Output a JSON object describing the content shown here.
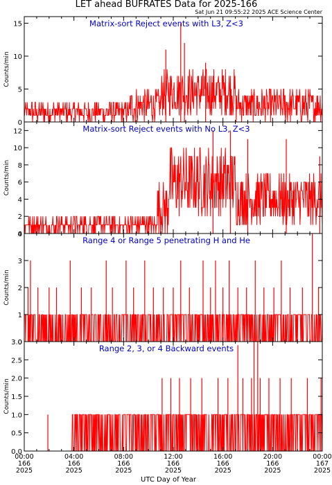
{
  "title": "LET ahead BUFRATES Data for 2025-166",
  "timestamp": "Sat Jun 21 09:55:22 2025 ACE Science Center",
  "xlabel": "UTC Day of Year",
  "colors": {
    "trace": "#ff0000",
    "panel_title": "#0000cc",
    "axis": "#000000"
  },
  "x_ticks": [
    {
      "time": "00:00",
      "day": "166",
      "year": "2025",
      "hours": 0
    },
    {
      "time": "04:00",
      "day": "166",
      "year": "2025",
      "hours": 4
    },
    {
      "time": "08:00",
      "day": "166",
      "year": "2025",
      "hours": 8
    },
    {
      "time": "12:00",
      "day": "166",
      "year": "2025",
      "hours": 12
    },
    {
      "time": "16:00",
      "day": "166",
      "year": "2025",
      "hours": 16
    },
    {
      "time": "20:00",
      "day": "166",
      "year": "2025",
      "hours": 20
    },
    {
      "time": "00:00",
      "day": "167",
      "year": "2025",
      "hours": 24
    }
  ],
  "chart_data": [
    {
      "type": "line",
      "title": "Matrix-sort Reject events with L3, Z<3",
      "ylabel": "Counts/min",
      "xlim": [
        0,
        24
      ],
      "ylim": [
        0,
        16
      ],
      "yticks": [
        "0",
        "5",
        "10",
        "15"
      ],
      "ytick_values": [
        0,
        5,
        10,
        15
      ],
      "segments": [
        {
          "x_start": 0,
          "x_end": 8.5,
          "low": 0,
          "high": 3
        },
        {
          "x_start": 8.5,
          "x_end": 11,
          "low": 0,
          "high": 5
        },
        {
          "x_start": 11,
          "x_end": 17,
          "low": 1,
          "high": 8
        },
        {
          "x_start": 17,
          "x_end": 24,
          "low": 0,
          "high": 5
        }
      ],
      "spikes": [
        {
          "x": 11.4,
          "y": 11
        },
        {
          "x": 12.6,
          "y": 15
        },
        {
          "x": 12.9,
          "y": 12
        },
        {
          "x": 14.6,
          "y": 9
        }
      ]
    },
    {
      "type": "line",
      "title": "Matrix-sort Reject events with No L3, Z<3",
      "ylabel": "Counts/min",
      "xlim": [
        0,
        24
      ],
      "ylim": [
        0,
        13
      ],
      "yticks": [
        "0",
        "2",
        "4",
        "6",
        "8",
        "10",
        "12"
      ],
      "ytick_values": [
        0,
        2,
        4,
        6,
        8,
        10,
        12
      ],
      "segments": [
        {
          "x_start": 0,
          "x_end": 10.6,
          "low": 0,
          "high": 2
        },
        {
          "x_start": 10.6,
          "x_end": 11.6,
          "low": 0,
          "high": 6
        },
        {
          "x_start": 11.6,
          "x_end": 17,
          "low": 2,
          "high": 10
        },
        {
          "x_start": 17,
          "x_end": 24,
          "low": 1,
          "high": 7
        }
      ],
      "spikes": [
        {
          "x": 15.2,
          "y": 12
        },
        {
          "x": 16.6,
          "y": 12
        },
        {
          "x": 18.0,
          "y": 11
        },
        {
          "x": 21.1,
          "y": 11
        },
        {
          "x": 23.8,
          "y": 9
        }
      ]
    },
    {
      "type": "line",
      "title": "Range 4 or Range 5 penetrating H and He",
      "ylabel": "Counts/min",
      "xlim": [
        0,
        24
      ],
      "ylim": [
        0,
        4
      ],
      "yticks": [
        "0",
        "1",
        "2",
        "3",
        "4"
      ],
      "ytick_values": [
        0,
        1,
        2,
        3,
        4
      ],
      "segments": [
        {
          "x_start": 0,
          "x_end": 24,
          "low": 0,
          "high": 1
        }
      ],
      "spikes": [
        {
          "x": 0.5,
          "y": 3
        },
        {
          "x": 3.7,
          "y": 3
        },
        {
          "x": 6.6,
          "y": 3
        },
        {
          "x": 8.2,
          "y": 3
        },
        {
          "x": 9.7,
          "y": 3
        },
        {
          "x": 12.6,
          "y": 3
        },
        {
          "x": 14.4,
          "y": 3
        },
        {
          "x": 15.4,
          "y": 3
        },
        {
          "x": 16.5,
          "y": 3
        },
        {
          "x": 18.6,
          "y": 3
        },
        {
          "x": 20.7,
          "y": 3
        },
        {
          "x": 23.2,
          "y": 4
        }
      ],
      "mid_spikes": [
        {
          "x": 0.3,
          "y": 2
        },
        {
          "x": 1.1,
          "y": 2
        },
        {
          "x": 2.0,
          "y": 2
        },
        {
          "x": 2.6,
          "y": 2
        },
        {
          "x": 4.6,
          "y": 2
        },
        {
          "x": 5.4,
          "y": 2
        },
        {
          "x": 7.1,
          "y": 2
        },
        {
          "x": 8.8,
          "y": 2
        },
        {
          "x": 10.4,
          "y": 2
        },
        {
          "x": 11.2,
          "y": 2
        },
        {
          "x": 12.0,
          "y": 2
        },
        {
          "x": 13.3,
          "y": 2
        },
        {
          "x": 15.0,
          "y": 2
        },
        {
          "x": 16.0,
          "y": 2
        },
        {
          "x": 17.2,
          "y": 2
        },
        {
          "x": 17.9,
          "y": 2
        },
        {
          "x": 19.3,
          "y": 2
        },
        {
          "x": 20.1,
          "y": 2
        },
        {
          "x": 21.4,
          "y": 2
        },
        {
          "x": 22.4,
          "y": 2
        },
        {
          "x": 23.7,
          "y": 2
        }
      ]
    },
    {
      "type": "line",
      "title": "Range 2, 3, or 4 Backward events",
      "ylabel": "Counts/min",
      "xlim": [
        0,
        24
      ],
      "ylim": [
        0,
        3
      ],
      "yticks": [
        "0.0",
        "0.5",
        "1.0",
        "1.5",
        "2.0",
        "2.5",
        "3.0"
      ],
      "ytick_values": [
        0,
        0.5,
        1,
        1.5,
        2,
        2.5,
        3
      ],
      "segments": [
        {
          "x_start": 0,
          "x_end": 3.8,
          "low": 0,
          "high": 0
        },
        {
          "x_start": 3.8,
          "x_end": 10.5,
          "low": 0,
          "high": 1
        },
        {
          "x_start": 10.5,
          "x_end": 24,
          "low": 0,
          "high": 1
        }
      ],
      "spikes": [
        {
          "x": 1.9,
          "y": 1
        },
        {
          "x": 17.2,
          "y": 2.9
        },
        {
          "x": 18.5,
          "y": 3
        },
        {
          "x": 18.8,
          "y": 3
        }
      ],
      "mid_spikes": [
        {
          "x": 11.1,
          "y": 2
        },
        {
          "x": 11.8,
          "y": 2
        },
        {
          "x": 12.5,
          "y": 2
        },
        {
          "x": 13.4,
          "y": 2
        },
        {
          "x": 14.3,
          "y": 2
        },
        {
          "x": 15.6,
          "y": 2
        },
        {
          "x": 16.4,
          "y": 2
        },
        {
          "x": 17.6,
          "y": 2
        },
        {
          "x": 18.3,
          "y": 2
        },
        {
          "x": 19.0,
          "y": 2
        },
        {
          "x": 19.7,
          "y": 2
        },
        {
          "x": 20.6,
          "y": 2
        },
        {
          "x": 21.5,
          "y": 2
        },
        {
          "x": 22.8,
          "y": 2
        },
        {
          "x": 23.9,
          "y": 2
        }
      ]
    }
  ]
}
